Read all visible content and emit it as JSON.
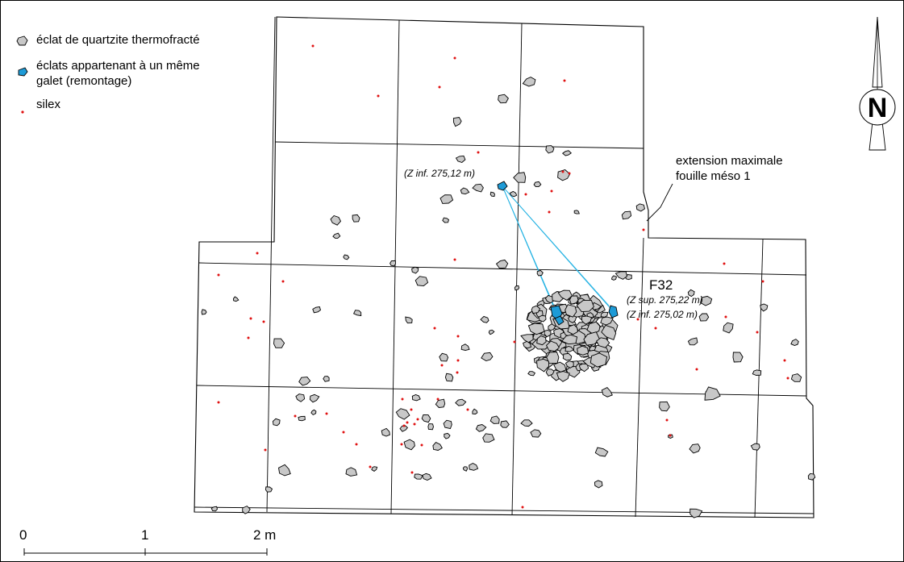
{
  "legend": {
    "items": [
      {
        "symbol": "stone-symbol",
        "text_lines": [
          "éclat de quartzite thermofracté"
        ]
      },
      {
        "symbol": "refit-symbol",
        "text_lines": [
          "éclats appartenant à un même",
          "galet (remontage)"
        ]
      },
      {
        "symbol": "flint-symbol",
        "text_lines": [
          "silex"
        ]
      }
    ]
  },
  "labels": {
    "z_top": "(Z inf. 275,12 m)",
    "feature": "F32",
    "z_sup": "(Z sup. 275,22 m)",
    "z_inf": "(Z inf. 275,02 m)",
    "extension_line1": "extension maximale",
    "extension_line2": "fouille méso 1"
  },
  "north_arrow": {
    "letter": "N"
  },
  "scale_bar": {
    "ticks": [
      "0",
      "1",
      "2 m"
    ]
  },
  "colors": {
    "stone": "#c8c8c8",
    "refit": "#1e9bd7",
    "flint": "#e01010",
    "refit_line": "#27b3e3"
  }
}
